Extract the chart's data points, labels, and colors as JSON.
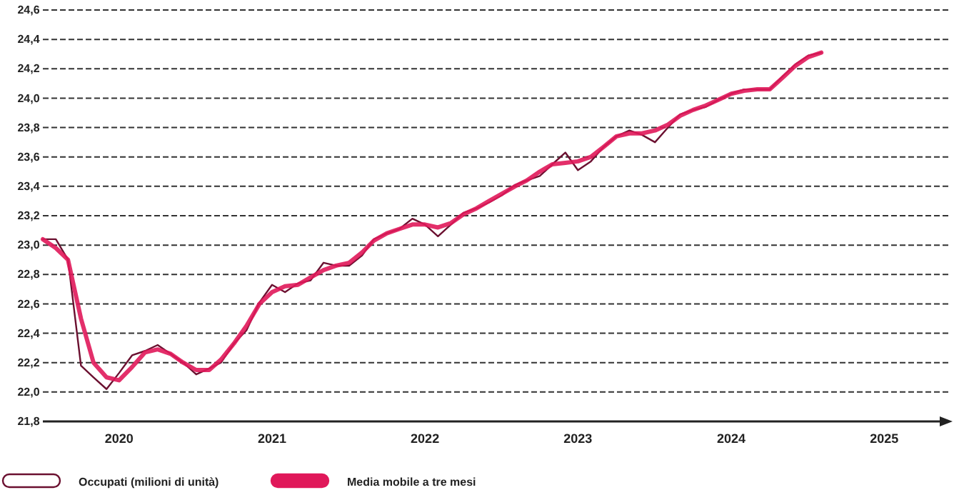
{
  "chart_data": {
    "type": "line",
    "x": [
      "2020-01",
      "2020-02",
      "2020-03",
      "2020-04",
      "2020-05",
      "2020-06",
      "2020-07",
      "2020-08",
      "2020-09",
      "2020-10",
      "2020-11",
      "2020-12",
      "2021-01",
      "2021-02",
      "2021-03",
      "2021-04",
      "2021-05",
      "2021-06",
      "2021-07",
      "2021-08",
      "2021-09",
      "2021-10",
      "2021-11",
      "2021-12",
      "2022-01",
      "2022-02",
      "2022-03",
      "2022-04",
      "2022-05",
      "2022-06",
      "2022-07",
      "2022-08",
      "2022-09",
      "2022-10",
      "2022-11",
      "2022-12",
      "2023-01",
      "2023-02",
      "2023-03",
      "2023-04",
      "2023-05",
      "2023-06",
      "2023-07",
      "2023-08",
      "2023-09",
      "2023-10",
      "2023-11",
      "2023-12",
      "2024-01",
      "2024-02",
      "2024-03",
      "2024-04",
      "2024-05",
      "2024-06",
      "2024-07",
      "2024-08",
      "2024-09",
      "2024-10",
      "2024-11",
      "2024-12",
      "2025-01",
      "2025-02"
    ],
    "series": [
      {
        "name": "Occupati (milioni di unità)",
        "color": "#6b1030",
        "values": [
          23.04,
          23.04,
          22.9,
          22.18,
          22.1,
          22.02,
          22.13,
          22.25,
          22.28,
          22.32,
          22.26,
          22.2,
          22.12,
          22.16,
          22.2,
          22.33,
          22.42,
          22.61,
          22.73,
          22.68,
          22.74,
          22.76,
          22.88,
          22.86,
          22.86,
          22.93,
          23.04,
          23.08,
          23.11,
          23.18,
          23.14,
          23.06,
          23.14,
          23.22,
          23.25,
          23.29,
          23.34,
          23.41,
          23.44,
          23.47,
          23.55,
          23.63,
          23.51,
          23.57,
          23.67,
          23.74,
          23.78,
          23.75,
          23.7,
          23.8,
          23.89,
          23.92,
          23.94,
          23.99,
          24.03,
          24.06,
          24.06,
          24.06,
          24.15,
          24.23,
          24.29,
          24.31
        ]
      },
      {
        "name": "Media mobile a tre mesi",
        "color": "#e0185a",
        "values": [
          23.04,
          22.98,
          22.9,
          22.5,
          22.2,
          22.1,
          22.08,
          22.17,
          22.27,
          22.29,
          22.26,
          22.2,
          22.15,
          22.15,
          22.22,
          22.33,
          22.45,
          22.6,
          22.68,
          22.72,
          22.73,
          22.78,
          22.83,
          22.86,
          22.88,
          22.95,
          23.03,
          23.08,
          23.11,
          23.14,
          23.14,
          23.12,
          23.15,
          23.21,
          23.25,
          23.3,
          23.35,
          23.4,
          23.44,
          23.5,
          23.55,
          23.56,
          23.57,
          23.6,
          23.67,
          23.74,
          23.76,
          23.76,
          23.78,
          23.82,
          23.88,
          23.92,
          23.95,
          23.99,
          24.03,
          24.05,
          24.06,
          24.06,
          24.14,
          24.22,
          24.28,
          24.31
        ]
      }
    ],
    "xlim": [
      "2020-01",
      "2025-12"
    ],
    "xticks": [
      {
        "value": "2020-07",
        "label": "2020"
      },
      {
        "value": "2021-07",
        "label": "2021"
      },
      {
        "value": "2022-07",
        "label": "2022"
      },
      {
        "value": "2023-07",
        "label": "2023"
      },
      {
        "value": "2024-07",
        "label": "2024"
      },
      {
        "value": "2025-07",
        "label": "2025"
      }
    ],
    "ylim": [
      21.8,
      24.6
    ],
    "yticks": [
      {
        "value": 21.8,
        "label": "21,8"
      },
      {
        "value": 22.0,
        "label": "22,0"
      },
      {
        "value": 22.2,
        "label": "22,2"
      },
      {
        "value": 22.4,
        "label": "22,4"
      },
      {
        "value": 22.6,
        "label": "22,6"
      },
      {
        "value": 22.8,
        "label": "22,8"
      },
      {
        "value": 23.0,
        "label": "23,0"
      },
      {
        "value": 23.2,
        "label": "23,2"
      },
      {
        "value": 23.4,
        "label": "23,4"
      },
      {
        "value": 23.6,
        "label": "23,6"
      },
      {
        "value": 23.8,
        "label": "23,8"
      },
      {
        "value": 24.0,
        "label": "24,0"
      },
      {
        "value": 24.2,
        "label": "24,2"
      },
      {
        "value": 24.4,
        "label": "24,4"
      },
      {
        "value": 24.6,
        "label": "24,6"
      }
    ],
    "grid": "y",
    "legend": "bottom left",
    "line_style": "solid",
    "marker": "none"
  }
}
